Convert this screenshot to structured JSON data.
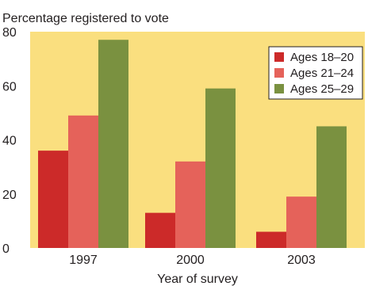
{
  "chart_data": {
    "type": "bar",
    "title": "Percentage registered to vote",
    "xlabel": "Year of survey",
    "ylabel": "",
    "categories": [
      "1997",
      "2000",
      "2003"
    ],
    "ylim": [
      0,
      80
    ],
    "yticks": [
      0,
      20,
      40,
      60,
      80
    ],
    "grid": false,
    "legend_position": "top-right",
    "plot_background": "#fadf7f",
    "series": [
      {
        "name": "Ages 18–20",
        "color": "#cc2a29",
        "values": [
          36,
          13,
          6
        ]
      },
      {
        "name": "Ages 21–24",
        "color": "#e5625a",
        "values": [
          49,
          32,
          19
        ]
      },
      {
        "name": "Ages 25–29",
        "color": "#7a9140",
        "values": [
          77,
          59,
          45
        ]
      }
    ]
  }
}
